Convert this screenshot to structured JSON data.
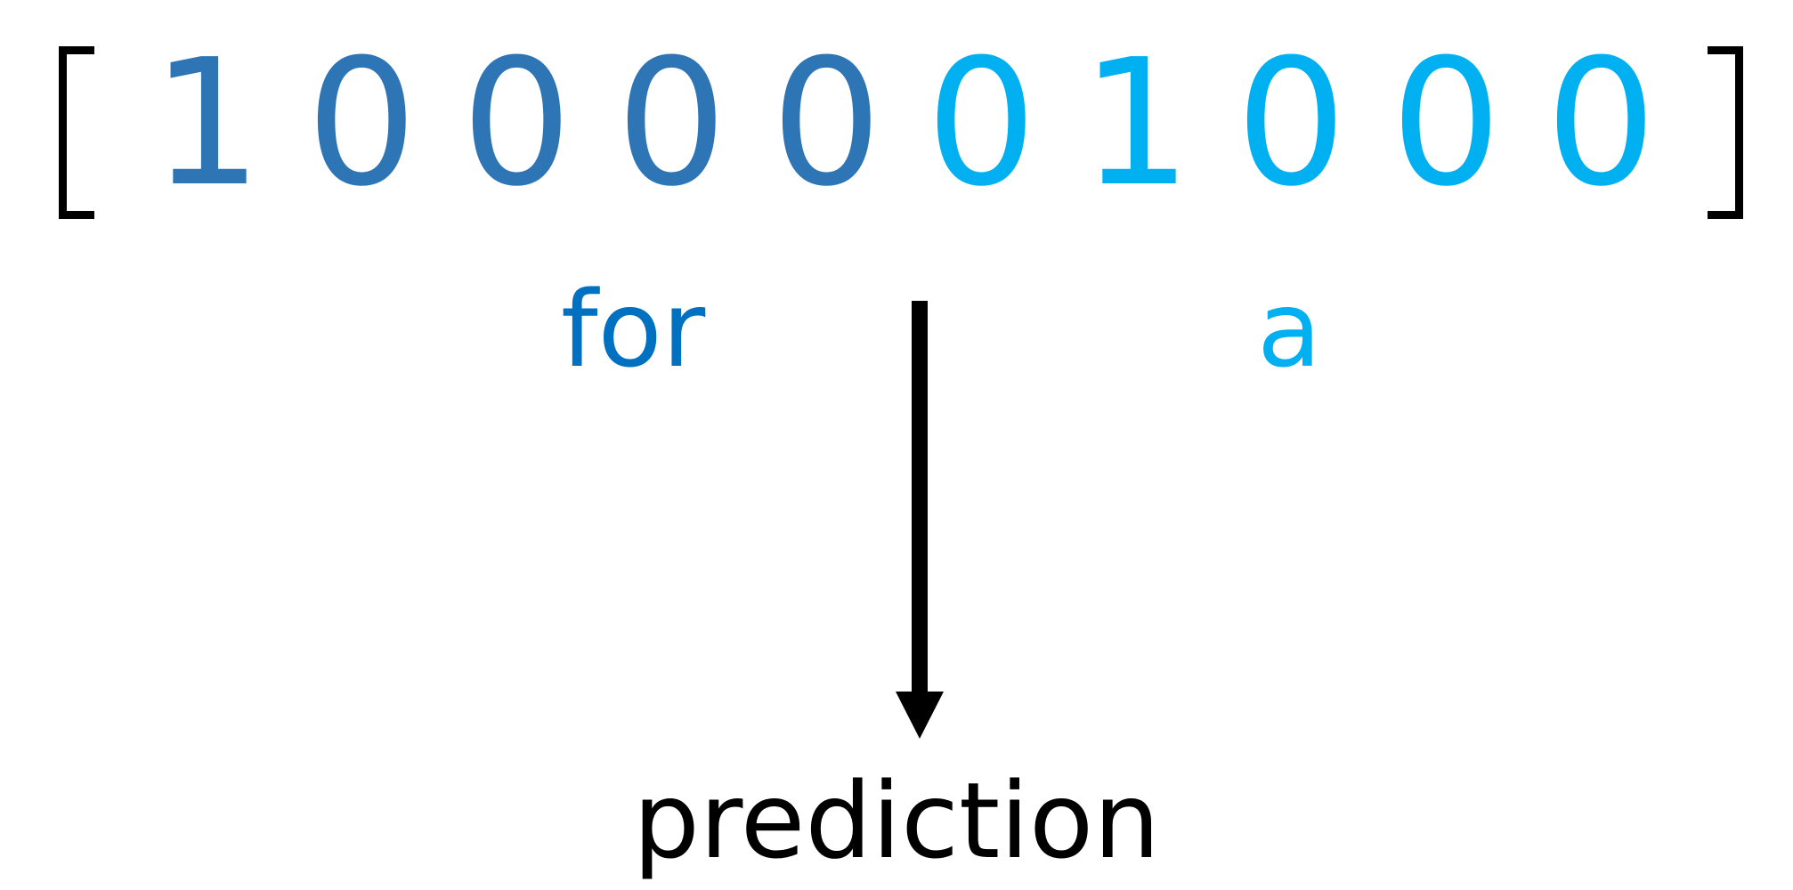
{
  "vector": {
    "digits": [
      "1",
      "0",
      "0",
      "0",
      "0",
      "0",
      "1",
      "0",
      "0",
      "0"
    ],
    "group_colors": [
      "#2e75b6",
      "#2e75b6",
      "#2e75b6",
      "#2e75b6",
      "#2e75b6",
      "#00b0f0",
      "#00b0f0",
      "#00b0f0",
      "#00b0f0",
      "#00b0f0"
    ]
  },
  "words": {
    "first": "for",
    "first_color": "#0070c0",
    "second": "a",
    "second_color": "#00b0f0"
  },
  "output": {
    "label": "prediction"
  }
}
